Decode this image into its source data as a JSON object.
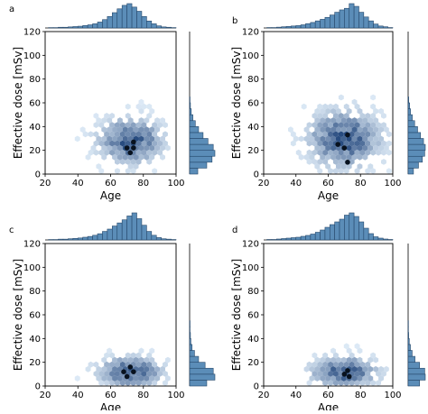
{
  "colors": {
    "hist_fill": "#5b8db8",
    "hist_edge": "#26486b",
    "hex_light": "#deebf7",
    "hex_dark": "#08306b",
    "axis": "#000000"
  },
  "chart_data": [
    {
      "panel_label": "a",
      "type": "hexbin_with_marginal_histograms",
      "xlabel": "Age",
      "ylabel": "Effective dose [mSv]",
      "xlim": [
        20,
        100
      ],
      "ylim": [
        0,
        120
      ],
      "xticks": [
        "20",
        "40",
        "60",
        "80",
        "100"
      ],
      "yticks": [
        "0",
        "20",
        "40",
        "60",
        "80",
        "100",
        "120"
      ],
      "center": {
        "age": 72,
        "dose": 28
      },
      "spread": {
        "age": 12,
        "dose": 12
      },
      "dense_points": [
        [
          70,
          22
        ],
        [
          74,
          22
        ],
        [
          72,
          18
        ],
        [
          74,
          27
        ]
      ],
      "x_hist": {
        "bin_start": 22,
        "bin_width": 3,
        "counts": [
          1,
          1,
          2,
          2,
          3,
          4,
          5,
          7,
          9,
          12,
          17,
          24,
          33,
          44,
          55,
          65,
          70,
          60,
          48,
          33,
          20,
          12,
          6,
          3,
          2,
          1
        ]
      },
      "y_hist": {
        "bin_start": 0,
        "bin_width": 5,
        "counts": [
          20,
          42,
          55,
          62,
          58,
          45,
          33,
          22,
          14,
          8,
          4,
          2,
          1
        ]
      }
    },
    {
      "panel_label": "b",
      "type": "hexbin_with_marginal_histograms",
      "xlabel": "Age",
      "ylabel": "Effective dose [mSv]",
      "xlim": [
        20,
        100
      ],
      "ylim": [
        0,
        120
      ],
      "xticks": [
        "20",
        "40",
        "60",
        "80",
        "100"
      ],
      "yticks": [
        "0",
        "20",
        "40",
        "60",
        "80",
        "100",
        "120"
      ],
      "center": {
        "age": 70,
        "dose": 30
      },
      "spread": {
        "age": 14,
        "dose": 15
      },
      "dense_points": [
        [
          72,
          33
        ],
        [
          72,
          10
        ],
        [
          70,
          22
        ],
        [
          66,
          25
        ]
      ],
      "x_hist": {
        "bin_start": 22,
        "bin_width": 3,
        "counts": [
          1,
          1,
          2,
          3,
          4,
          5,
          6,
          8,
          11,
          14,
          18,
          22,
          27,
          33,
          40,
          46,
          50,
          62,
          55,
          40,
          28,
          18,
          10,
          5,
          3,
          1
        ]
      },
      "y_hist": {
        "bin_start": 0,
        "bin_width": 5,
        "counts": [
          18,
          35,
          48,
          56,
          58,
          52,
          42,
          32,
          22,
          14,
          8,
          5,
          2
        ]
      }
    },
    {
      "panel_label": "c",
      "type": "hexbin_with_marginal_histograms",
      "xlabel": "Age",
      "ylabel": "Effective dose [mSv]",
      "xlim": [
        20,
        100
      ],
      "ylim": [
        0,
        120
      ],
      "xticks": [
        "20",
        "40",
        "60",
        "80",
        "100"
      ],
      "yticks": [
        "0",
        "20",
        "40",
        "60",
        "80",
        "100",
        "120"
      ],
      "center": {
        "age": 72,
        "dose": 12
      },
      "spread": {
        "age": 12,
        "dose": 8
      },
      "dense_points": [
        [
          70,
          8
        ],
        [
          74,
          12
        ],
        [
          72,
          16
        ],
        [
          68,
          12
        ]
      ],
      "x_hist": {
        "bin_start": 22,
        "bin_width": 3,
        "counts": [
          1,
          1,
          2,
          2,
          3,
          4,
          5,
          7,
          9,
          12,
          16,
          22,
          28,
          36,
          44,
          52,
          62,
          70,
          55,
          38,
          22,
          12,
          6,
          3,
          2,
          1
        ]
      },
      "y_hist": {
        "bin_start": 0,
        "bin_width": 5,
        "counts": [
          42,
          62,
          58,
          38,
          22,
          12,
          6,
          3,
          2,
          1,
          1
        ]
      }
    },
    {
      "panel_label": "d",
      "type": "hexbin_with_marginal_histograms",
      "xlabel": "Age",
      "ylabel": "Effective dose [mSv]",
      "xlim": [
        20,
        100
      ],
      "ylim": [
        0,
        120
      ],
      "xticks": [
        "20",
        "40",
        "60",
        "80",
        "100"
      ],
      "yticks": [
        "0",
        "20",
        "40",
        "60",
        "80",
        "100",
        "120"
      ],
      "center": {
        "age": 70,
        "dose": 12
      },
      "spread": {
        "age": 13,
        "dose": 8
      },
      "dense_points": [
        [
          70,
          10
        ],
        [
          73,
          8
        ],
        [
          72,
          13
        ]
      ],
      "x_hist": {
        "bin_start": 22,
        "bin_width": 3,
        "counts": [
          1,
          1,
          2,
          3,
          4,
          5,
          6,
          8,
          10,
          13,
          17,
          22,
          28,
          34,
          40,
          46,
          55,
          60,
          52,
          40,
          26,
          14,
          7,
          4,
          2,
          1
        ]
      },
      "y_hist": {
        "bin_start": 0,
        "bin_width": 5,
        "counts": [
          40,
          60,
          58,
          40,
          24,
          14,
          8,
          4,
          2,
          1,
          1
        ]
      }
    }
  ]
}
